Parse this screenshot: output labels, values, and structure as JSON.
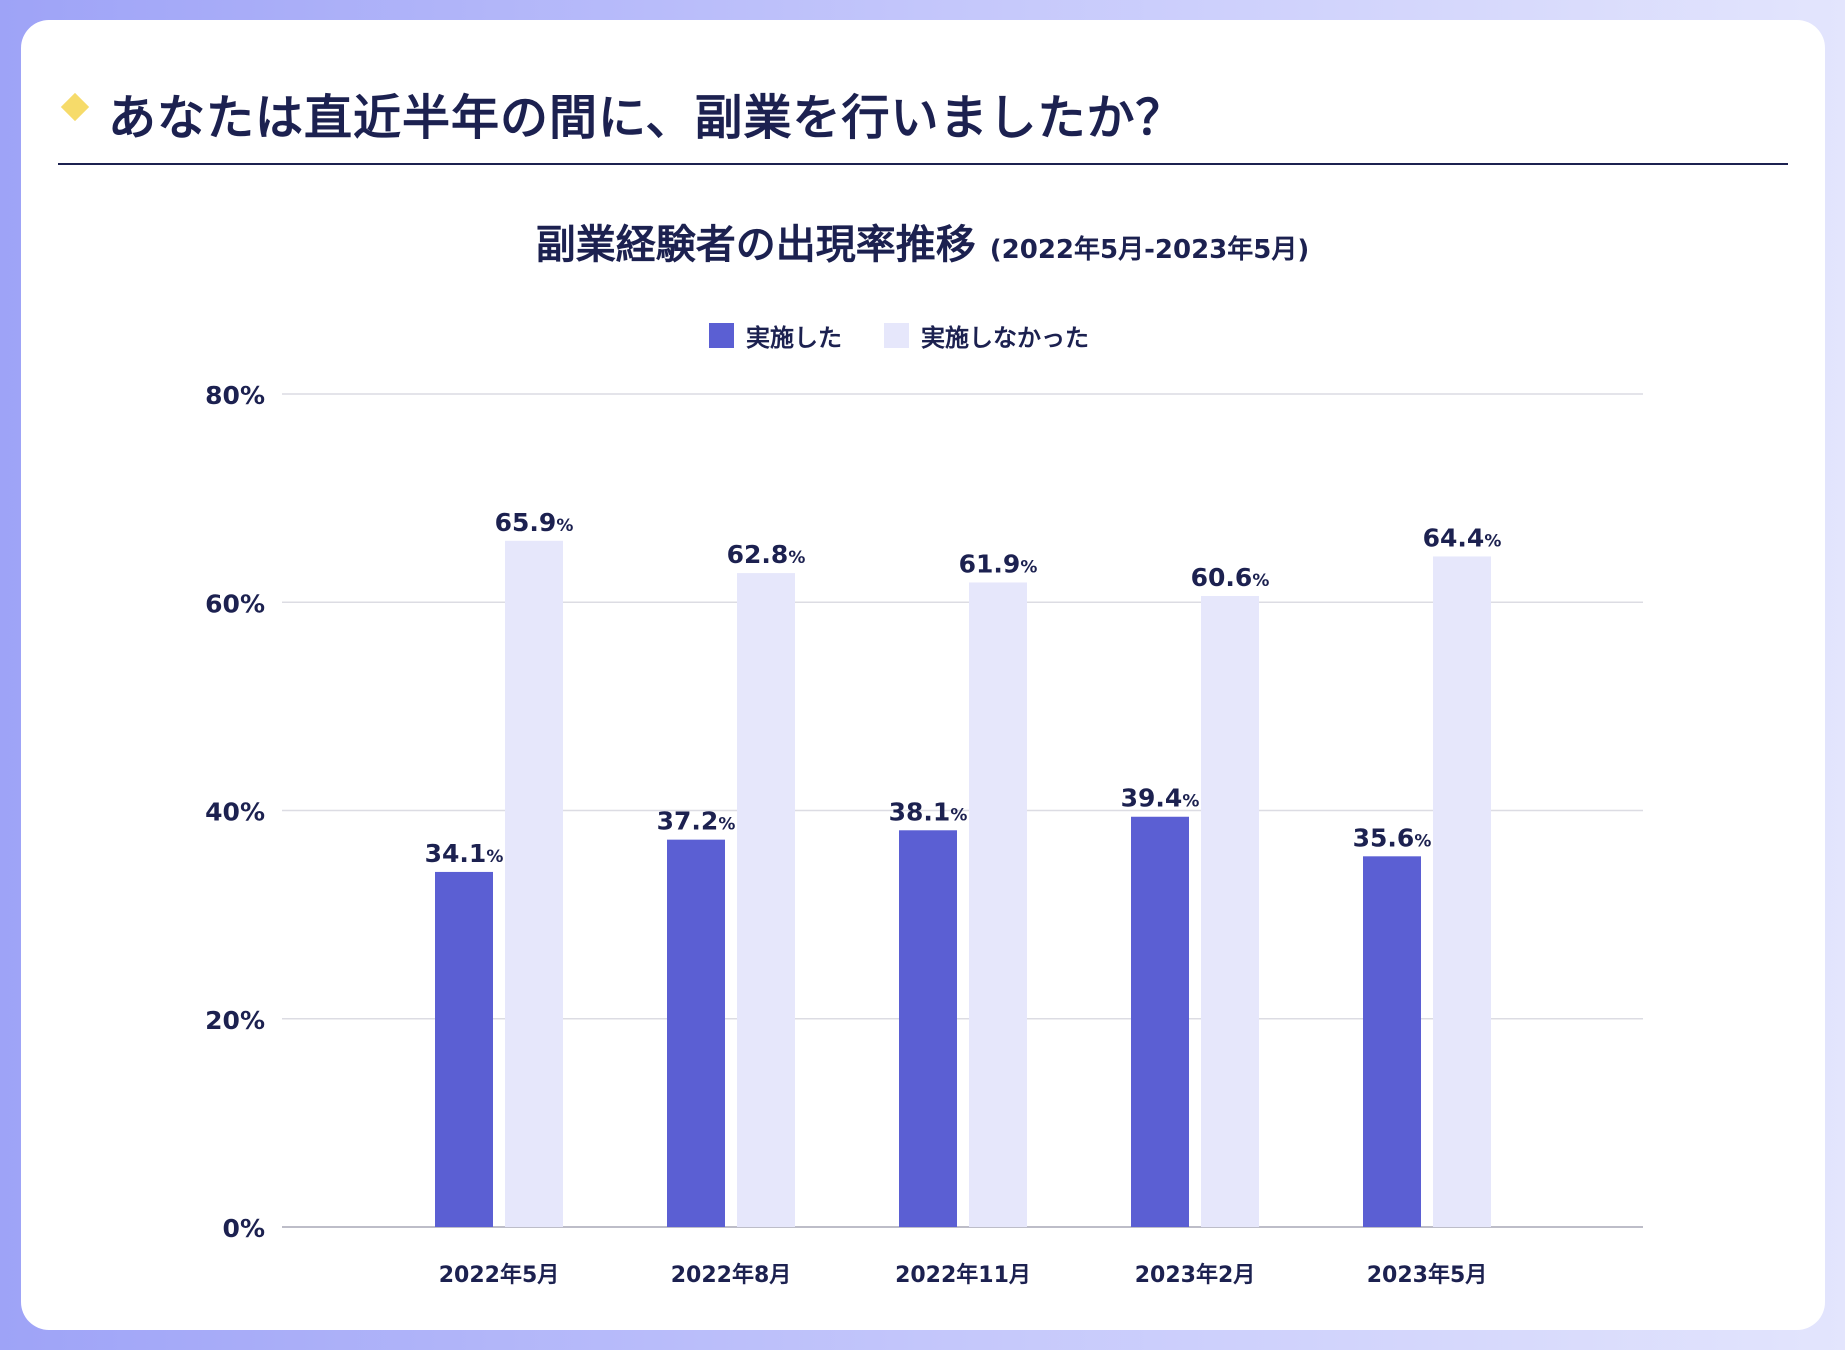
{
  "header": {
    "title": "あなたは直近半年の間に、副業を行いましたか？"
  },
  "chart_data": {
    "type": "bar",
    "title": "副業経験者の出現率推移",
    "subtitle": "(2022年5月-2023年5月)",
    "categories": [
      "2022年5月",
      "2022年8月",
      "2022年11月",
      "2023年2月",
      "2023年5月"
    ],
    "series": [
      {
        "name": "実施した",
        "values": [
          34.1,
          37.2,
          38.1,
          39.4,
          35.6
        ],
        "labels": [
          "34.1%",
          "37.2%",
          "38.1%",
          "39.4%",
          "35.6%"
        ],
        "color": "#5b5fd3"
      },
      {
        "name": "実施しなかった",
        "values": [
          65.9,
          62.8,
          61.9,
          60.6,
          64.4
        ],
        "labels": [
          "65.9%",
          "62.8%",
          "61.9%",
          "60.6%",
          "64.4%"
        ],
        "color": "#e6e7fb"
      }
    ],
    "ylim": [
      0,
      80
    ],
    "yticks": [
      "0%",
      "20%",
      "40%",
      "60%",
      "80%"
    ],
    "grid": true,
    "legend": "top-center",
    "xlabel": "",
    "ylabel": ""
  }
}
